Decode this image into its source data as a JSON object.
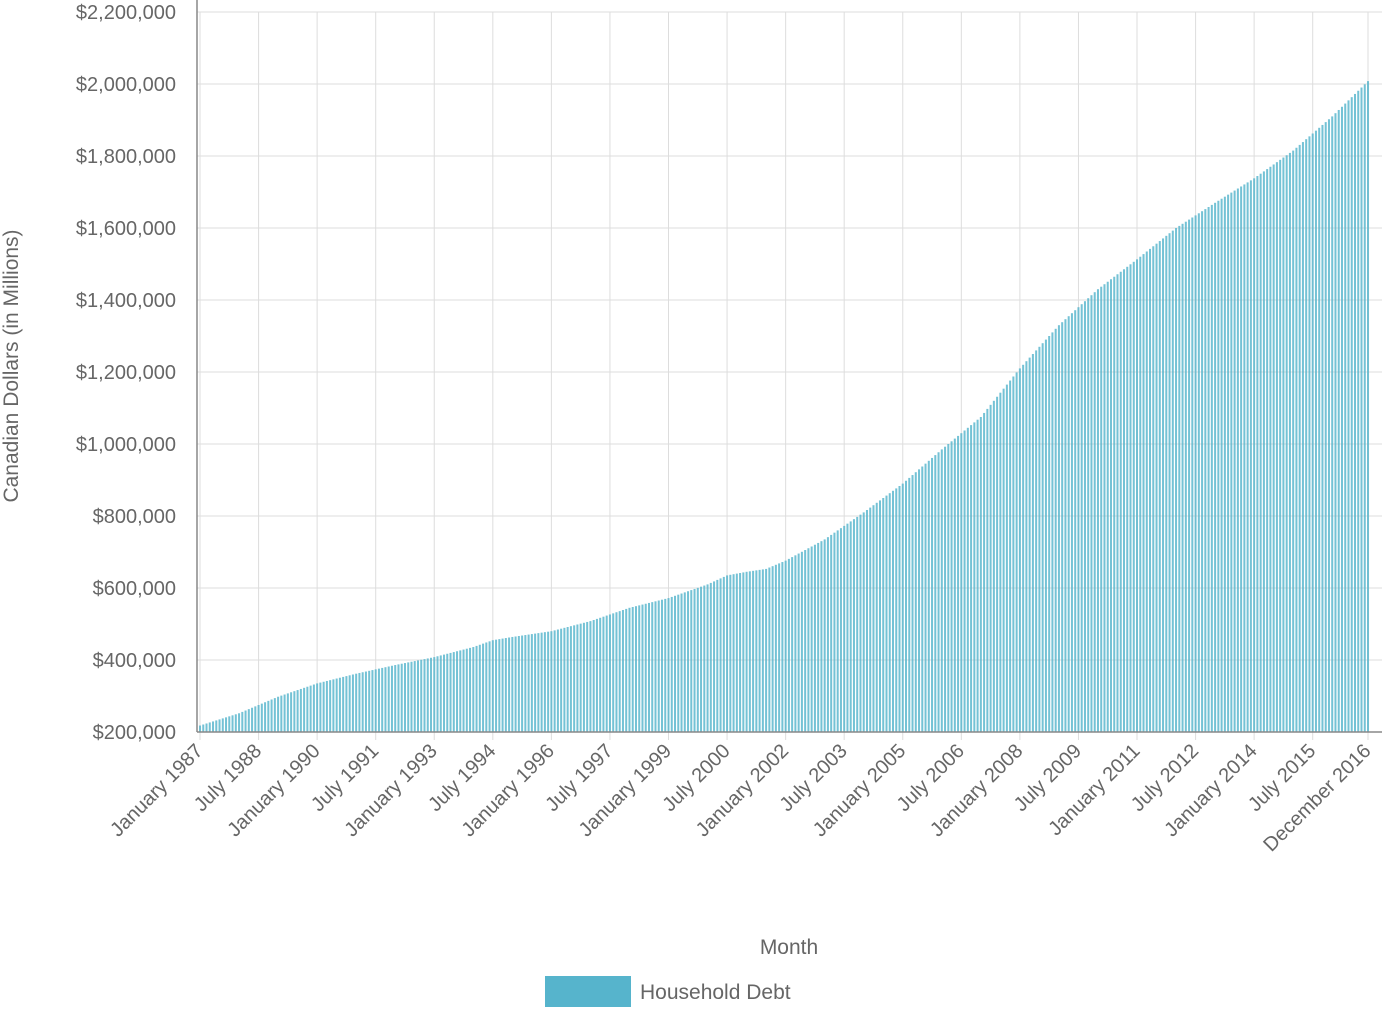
{
  "chart_data": {
    "type": "bar",
    "xlabel": "Month",
    "ylabel": "Canadian Dollars (in Millions)",
    "ylim": [
      200000,
      2200000
    ],
    "y_ticks": [
      "$200,000",
      "$400,000",
      "$600,000",
      "$800,000",
      "$1,000,000",
      "$1,200,000",
      "$1,400,000",
      "$1,600,000",
      "$1,800,000",
      "$2,000,000",
      "$2,200,000"
    ],
    "y_tick_values": [
      200000,
      400000,
      600000,
      800000,
      1000000,
      1200000,
      1400000,
      1600000,
      1800000,
      2000000,
      2200000
    ],
    "start_month": "January 1987",
    "end_month": "December 2016",
    "x_tick_labels": [
      "January 1987",
      "July 1988",
      "January 1990",
      "July 1991",
      "January 1993",
      "July 1994",
      "January 1996",
      "July 1997",
      "January 1999",
      "July 2000",
      "January 2002",
      "July 2003",
      "January 2005",
      "July 2006",
      "January 2008",
      "July 2009",
      "January 2011",
      "July 2012",
      "January 2014",
      "July 2015",
      "December 2016"
    ],
    "grid": true,
    "legend_position": "bottom",
    "series": [
      {
        "name": "Household Debt",
        "color": "#56b4cc",
        "anchors": [
          [
            "January 1987",
            218000
          ],
          [
            "January 1988",
            252000
          ],
          [
            "July 1988",
            275000
          ],
          [
            "January 1989",
            298000
          ],
          [
            "January 1990",
            335000
          ],
          [
            "January 1991",
            362000
          ],
          [
            "July 1991",
            374000
          ],
          [
            "January 1992",
            386000
          ],
          [
            "January 1993",
            408000
          ],
          [
            "January 1994",
            436000
          ],
          [
            "July 1994",
            455000
          ],
          [
            "January 1995",
            464000
          ],
          [
            "January 1996",
            480000
          ],
          [
            "January 1997",
            508000
          ],
          [
            "January 1998",
            545000
          ],
          [
            "January 1999",
            572000
          ],
          [
            "January 2000",
            610000
          ],
          [
            "July 2000",
            635000
          ],
          [
            "January 2001",
            645000
          ],
          [
            "July 2001",
            653000
          ],
          [
            "January 2002",
            676000
          ],
          [
            "January 2003",
            735000
          ],
          [
            "January 2004",
            810000
          ],
          [
            "January 2005",
            890000
          ],
          [
            "January 2006",
            985000
          ],
          [
            "January 2007",
            1075000
          ],
          [
            "January 2008",
            1210000
          ],
          [
            "January 2009",
            1330000
          ],
          [
            "January 2010",
            1430000
          ],
          [
            "January 2011",
            1513000
          ],
          [
            "January 2012",
            1600000
          ],
          [
            "January 2013",
            1670000
          ],
          [
            "January 2014",
            1738000
          ],
          [
            "January 2015",
            1815000
          ],
          [
            "January 2016",
            1910000
          ],
          [
            "December 2016",
            2008000
          ]
        ]
      }
    ]
  }
}
